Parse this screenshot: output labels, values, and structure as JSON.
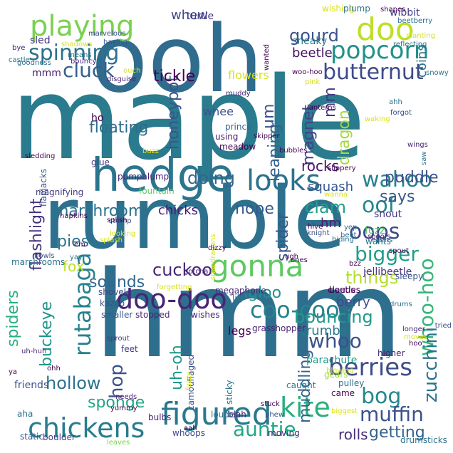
{
  "words": [
    {
      "text": "maple",
      "color": "#2a7b8e"
    },
    {
      "text": "ooh",
      "color": "#2f6c8e"
    },
    {
      "text": "hmm",
      "color": "#2e6f8e"
    },
    {
      "text": "rumble",
      "color": "#2d718e"
    },
    {
      "text": "hedge",
      "color": "#2b758e"
    },
    {
      "text": "playing",
      "color": "#7ad151"
    },
    {
      "text": "spinning",
      "color": "#2c728e"
    },
    {
      "text": "doo",
      "color": "#bddf26"
    },
    {
      "text": "popcorn",
      "color": "#21918c"
    },
    {
      "text": "gourd",
      "color": "#3b528b"
    },
    {
      "text": "butternut",
      "color": "#3e4a89"
    },
    {
      "text": "looks",
      "color": "#2c728e"
    },
    {
      "text": "honeypot",
      "color": "#3a548c"
    },
    {
      "text": "magnet",
      "color": "#414487"
    },
    {
      "text": "mm",
      "color": "#453882"
    },
    {
      "text": "dragon",
      "color": "#a2da37"
    },
    {
      "text": "wahoo",
      "color": "#26828e"
    },
    {
      "text": "oof",
      "color": "#24878e"
    },
    {
      "text": "flashlight",
      "color": "#46337e"
    },
    {
      "text": "marshroom",
      "color": "#2c728e"
    },
    {
      "text": "doing",
      "color": "#32658e"
    },
    {
      "text": "nope",
      "color": "#375a8c"
    },
    {
      "text": "clam",
      "color": "#1fa187"
    },
    {
      "text": "oops",
      "color": "#3e4989"
    },
    {
      "text": "says",
      "color": "#38598c"
    },
    {
      "text": "gonna",
      "color": "#5ec962"
    },
    {
      "text": "bigger",
      "color": "#1f9e89"
    },
    {
      "text": "things",
      "color": "#b5de2b"
    },
    {
      "text": "coo-coo",
      "color": "#26828e"
    },
    {
      "text": "doo-doo",
      "color": "#482475"
    },
    {
      "text": "cuckoo",
      "color": "#482878"
    },
    {
      "text": "sounds",
      "color": "#31688e"
    },
    {
      "text": "buckeye",
      "color": "#1f968b"
    },
    {
      "text": "rutabaga",
      "color": "#26828e"
    },
    {
      "text": "bouncing",
      "color": "#1f9a8a"
    },
    {
      "text": "whoo",
      "color": "#3b528b"
    },
    {
      "text": "whoo-hoo",
      "color": "#35b779"
    },
    {
      "text": "berries",
      "color": "#3d4e8a"
    },
    {
      "text": "bog",
      "color": "#24878e"
    },
    {
      "text": "zucchini",
      "color": "#2c728e"
    },
    {
      "text": "hop",
      "color": "#3b528b"
    },
    {
      "text": "uh-oh",
      "color": "#1f9a8a"
    },
    {
      "text": "hollow",
      "color": "#2c728e"
    },
    {
      "text": "sponge",
      "color": "#21a685"
    },
    {
      "text": "figured",
      "color": "#2a788e"
    },
    {
      "text": "chickens",
      "color": "#287c8e"
    },
    {
      "text": "auntie",
      "color": "#22a884"
    },
    {
      "text": "kite",
      "color": "#29af7f"
    },
    {
      "text": "muffin",
      "color": "#3b528b"
    },
    {
      "text": "getting",
      "color": "#34618d"
    },
    {
      "text": "muddling",
      "color": "#33638d"
    },
    {
      "text": "rolls",
      "color": "#472d7b"
    },
    {
      "text": "whew",
      "color": "#3e4989"
    },
    {
      "text": "beetle",
      "color": "#471063"
    },
    {
      "text": "cluck",
      "color": "#355f8d"
    },
    {
      "text": "tickle",
      "color": "#440154"
    },
    {
      "text": "floating",
      "color": "#2f6c8e"
    },
    {
      "text": "pies",
      "color": "#2c728e"
    },
    {
      "text": "fox",
      "color": "#bddf26"
    },
    {
      "text": "puddle",
      "color": "#3b528b"
    },
    {
      "text": "chicks",
      "color": "#481a6c"
    },
    {
      "text": "leaping",
      "color": "#33638d"
    },
    {
      "text": "um",
      "color": "#3b528b"
    },
    {
      "text": "rocks",
      "color": "#471365"
    },
    {
      "text": "squash",
      "color": "#38598c"
    },
    {
      "text": "hm",
      "color": "#482173"
    },
    {
      "text": "spider",
      "color": "#39568c"
    },
    {
      "text": "igloo",
      "color": "#21918c"
    },
    {
      "text": "spiders",
      "color": "#29af7f"
    },
    {
      "text": "crumbs",
      "color": "#2a788e"
    },
    {
      "text": "berry",
      "color": "#3e4989"
    },
    {
      "text": "legs",
      "color": "#440154"
    },
    {
      "text": "coins",
      "color": "#2c728e"
    },
    {
      "text": "wibbit",
      "color": "#433e85"
    },
    {
      "text": "sled",
      "color": "#453882"
    },
    {
      "text": "mmm",
      "color": "#482173"
    },
    {
      "text": "turtle",
      "color": "#443a83"
    },
    {
      "text": "sneaky",
      "color": "#2a788e"
    },
    {
      "text": "flowers",
      "color": "#d8e219"
    },
    {
      "text": "whee",
      "color": "#3b528b"
    },
    {
      "text": "ho",
      "color": "#440154"
    },
    {
      "text": "glue",
      "color": "#433e85"
    },
    {
      "text": "pumpalump",
      "color": "#482475"
    },
    {
      "text": "fuzz",
      "color": "#4ac16d"
    },
    {
      "text": "snout",
      "color": "#453882"
    },
    {
      "text": "jellibeetle",
      "color": "#46337e"
    },
    {
      "text": "sleepy",
      "color": "#3b528b"
    },
    {
      "text": "prince",
      "color": "#31688e"
    },
    {
      "text": "using",
      "color": "#481a6c"
    },
    {
      "text": "meadow",
      "color": "#440154"
    },
    {
      "text": "magnifying",
      "color": "#443983"
    },
    {
      "text": "fountain",
      "color": "#5ec962"
    },
    {
      "text": "flapjacks",
      "color": "#3b528b"
    },
    {
      "text": "napkins",
      "color": "#440154"
    },
    {
      "text": "stump",
      "color": "#3b528b"
    },
    {
      "text": "shovel",
      "color": "#3e4989"
    },
    {
      "text": "kazoo",
      "color": "#3b528b"
    },
    {
      "text": "smaller",
      "color": "#38598c"
    },
    {
      "text": "stopped",
      "color": "#482475"
    },
    {
      "text": "wishes",
      "color": "#482878"
    },
    {
      "text": "megaphone",
      "color": "#472a7a"
    },
    {
      "text": "lily",
      "color": "#2c728e"
    },
    {
      "text": "clouds",
      "color": "#440154"
    },
    {
      "text": "beetles",
      "color": "#440154"
    },
    {
      "text": "grasshopper",
      "color": "#482475"
    },
    {
      "text": "parachute",
      "color": "#1f9a8a"
    },
    {
      "text": "higher",
      "color": "#482475"
    },
    {
      "text": "pulley",
      "color": "#2c728e"
    },
    {
      "text": "caught",
      "color": "#2a788e"
    },
    {
      "text": "came",
      "color": "#440154"
    },
    {
      "text": "gears",
      "color": "#a2da37"
    },
    {
      "text": "biggest",
      "color": "#d8e219"
    },
    {
      "text": "drumsticks",
      "color": "#2c728e"
    },
    {
      "text": "friends",
      "color": "#3b528b"
    },
    {
      "text": "ya",
      "color": "#440154"
    },
    {
      "text": "ohh",
      "color": "#440154"
    },
    {
      "text": "aha",
      "color": "#2c728e"
    },
    {
      "text": "bulbs",
      "color": "#482475"
    },
    {
      "text": "whoops",
      "color": "#3e4989"
    },
    {
      "text": "aah",
      "color": "#440154"
    },
    {
      "text": "louder",
      "color": "#2c728e"
    },
    {
      "text": "blah",
      "color": "#482173"
    },
    {
      "text": "moving",
      "color": "#482475"
    },
    {
      "text": "static",
      "color": "#3b528b"
    },
    {
      "text": "boulder",
      "color": "#443a83"
    },
    {
      "text": "leaves",
      "color": "#7ad151"
    },
    {
      "text": "sticky",
      "color": "#2c728e"
    },
    {
      "text": "phew",
      "color": "#3b528b"
    },
    {
      "text": "stuck",
      "color": "#440154"
    },
    {
      "text": "yummy",
      "color": "#440154"
    },
    {
      "text": "feet",
      "color": "#443983"
    },
    {
      "text": "sprout",
      "color": "#433e85"
    },
    {
      "text": "needs",
      "color": "#482475"
    },
    {
      "text": "camouflaged",
      "color": "#3b528b"
    },
    {
      "text": "fuzzy",
      "color": "#d8e219"
    },
    {
      "text": "bowls",
      "color": "#3b528b"
    },
    {
      "text": "marshrooms",
      "color": "#2c728e"
    },
    {
      "text": "splash",
      "color": "#d8e219"
    },
    {
      "text": "em",
      "color": "#440154"
    },
    {
      "text": "yay",
      "color": "#2c728e"
    },
    {
      "text": "looking",
      "color": "#d8e219"
    },
    {
      "text": "splish",
      "color": "#440154"
    },
    {
      "text": "snapdragons",
      "color": "#d8e219"
    },
    {
      "text": "wanna",
      "color": "#d8e219"
    },
    {
      "text": "hiding",
      "color": "#2c728e"
    },
    {
      "text": "dizzy",
      "color": "#440154"
    },
    {
      "text": "knight",
      "color": "#3b528b"
    },
    {
      "text": "beet",
      "color": "#2c728e"
    },
    {
      "text": "hive",
      "color": "#440154"
    },
    {
      "text": "yep",
      "color": "#2c728e"
    },
    {
      "text": "clams",
      "color": "#2c728e"
    },
    {
      "text": "ugh",
      "color": "#440154"
    },
    {
      "text": "bzz",
      "color": "#440154"
    },
    {
      "text": "ones",
      "color": "#440154"
    },
    {
      "text": "spools",
      "color": "#482475"
    },
    {
      "text": "wants",
      "color": "#2c728e"
    },
    {
      "text": "spout",
      "color": "#440154"
    },
    {
      "text": "drums",
      "color": "#2c728e"
    },
    {
      "text": "longer",
      "color": "#482475"
    },
    {
      "text": "moves",
      "color": "#d8e219"
    },
    {
      "text": "hoo",
      "color": "#440154"
    },
    {
      "text": "tried",
      "color": "#3b528b"
    },
    {
      "text": "blowing",
      "color": "#d8e219"
    },
    {
      "text": "forgetting",
      "color": "#d8e219"
    },
    {
      "text": "gotcha",
      "color": "#482475"
    },
    {
      "text": "uh-huh",
      "color": "#482475"
    },
    {
      "text": "wishing",
      "color": "#d8e219"
    },
    {
      "text": "plump",
      "color": "#2c728e"
    },
    {
      "text": "shapes",
      "color": "#440154"
    },
    {
      "text": "beetberry",
      "color": "#2c728e"
    },
    {
      "text": "planting",
      "color": "#d8e219"
    },
    {
      "text": "reflecting",
      "color": "#2c728e"
    },
    {
      "text": "marvelous",
      "color": "#3b528b"
    },
    {
      "text": "shadows",
      "color": "#d8e219"
    },
    {
      "text": "means",
      "color": "#2c728e"
    },
    {
      "text": "having",
      "color": "#3b528b"
    },
    {
      "text": "bye",
      "color": "#482475"
    },
    {
      "text": "castle",
      "color": "#2c728e"
    },
    {
      "text": "bouncy",
      "color": "#482475"
    },
    {
      "text": "goodness",
      "color": "#2c728e"
    },
    {
      "text": "disguise",
      "color": "#482475"
    },
    {
      "text": "ouch",
      "color": "#d8e219"
    },
    {
      "text": "woo-hoo",
      "color": "#440154"
    },
    {
      "text": "pink",
      "color": "#d8e219"
    },
    {
      "text": "snowy",
      "color": "#2c728e"
    },
    {
      "text": "wanted",
      "color": "#440154"
    },
    {
      "text": "ahh",
      "color": "#2c728e"
    },
    {
      "text": "forgot",
      "color": "#3b528b"
    },
    {
      "text": "lanterns",
      "color": "#440154"
    },
    {
      "text": "waking",
      "color": "#d8e219"
    },
    {
      "text": "wings",
      "color": "#482475"
    },
    {
      "text": "saw",
      "color": "#2c728e"
    },
    {
      "text": "mi",
      "color": "#2c728e"
    },
    {
      "text": "buzz",
      "color": "#d8e219"
    },
    {
      "text": "muddy",
      "color": "#482475"
    },
    {
      "text": "sledding",
      "color": "#440154"
    },
    {
      "text": "skipper",
      "color": "#440154"
    },
    {
      "text": "bubbles",
      "color": "#440154"
    },
    {
      "text": "slippery",
      "color": "#440154"
    }
  ]
}
